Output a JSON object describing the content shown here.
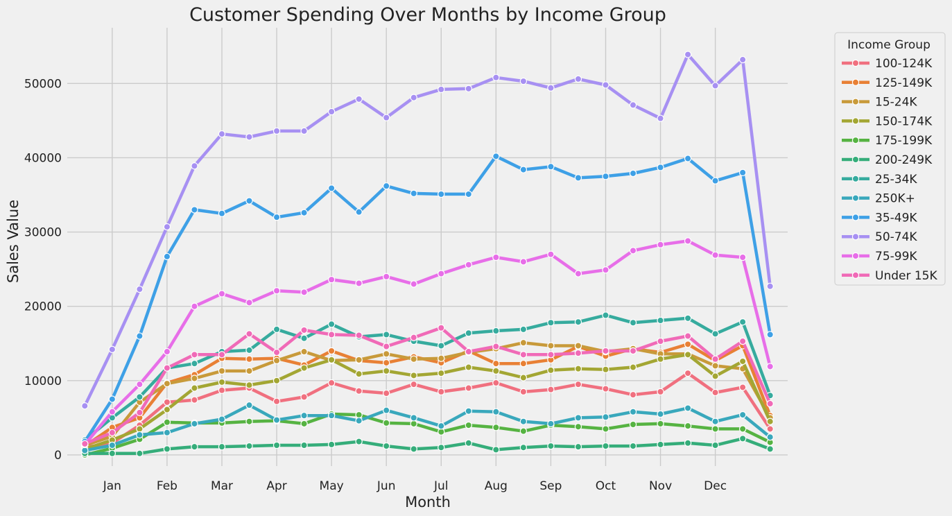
{
  "chart_data": {
    "type": "line",
    "title": "Customer Spending Over Months by Income Group",
    "xlabel": "Month",
    "ylabel": "Sales Value",
    "x_tick_labels": [
      "Jan",
      "Feb",
      "Mar",
      "Apr",
      "May",
      "Jun",
      "Jul",
      "Aug",
      "Sep",
      "Oct",
      "Nov",
      "Dec"
    ],
    "y_ticks": [
      0,
      10000,
      20000,
      30000,
      40000,
      50000
    ],
    "ylim": [
      -1500,
      57500
    ],
    "grid": true,
    "legend_title": "Income Group",
    "legend_placement": "outside-top-right",
    "series": [
      {
        "name": "100-124K",
        "color": "#f0707f",
        "values": [
          1000,
          1600,
          4000,
          7100,
          7400,
          8700,
          9000,
          7200,
          7800,
          9700,
          8600,
          8300,
          9500,
          8500,
          9000,
          9700,
          8500,
          8800,
          9500,
          8900,
          8100,
          8500,
          11000,
          8400,
          9100,
          3500
        ]
      },
      {
        "name": "125-149K",
        "color": "#e88035",
        "values": [
          1200,
          3700,
          5000,
          9700,
          10800,
          13000,
          12900,
          13000,
          12100,
          14000,
          12700,
          12400,
          13200,
          12400,
          14000,
          12300,
          12300,
          12800,
          14600,
          13300,
          14300,
          13800,
          14900,
          12700,
          14700,
          5300
        ]
      },
      {
        "name": "15-24K",
        "color": "#c89a3a",
        "values": [
          1300,
          2500,
          7100,
          9600,
          10300,
          11300,
          11300,
          12700,
          13900,
          12700,
          12800,
          13600,
          12900,
          13000,
          13800,
          14300,
          15100,
          14700,
          14700,
          13900,
          14300,
          13600,
          13600,
          12000,
          11600,
          5000
        ]
      },
      {
        "name": "150-174K",
        "color": "#a3a633",
        "values": [
          800,
          2000,
          3500,
          6100,
          9000,
          9800,
          9400,
          10000,
          11700,
          12800,
          10900,
          11300,
          10700,
          11000,
          11800,
          11300,
          10400,
          11400,
          11600,
          11500,
          11800,
          12900,
          13500,
          10600,
          12600,
          4500
        ]
      },
      {
        "name": "175-199K",
        "color": "#56b342",
        "values": [
          0,
          900,
          2100,
          4400,
          4300,
          4300,
          4500,
          4600,
          4200,
          5500,
          5400,
          4300,
          4200,
          3100,
          4000,
          3700,
          3200,
          4000,
          3800,
          3500,
          4100,
          4200,
          3900,
          3500,
          3500,
          1700
        ]
      },
      {
        "name": "200-249K",
        "color": "#35ad7a",
        "values": [
          200,
          200,
          200,
          800,
          1100,
          1100,
          1200,
          1300,
          1300,
          1400,
          1800,
          1200,
          800,
          1000,
          1600,
          700,
          1000,
          1200,
          1100,
          1200,
          1200,
          1400,
          1600,
          1300,
          2200,
          800
        ]
      },
      {
        "name": "25-34K",
        "color": "#36ab9e",
        "values": [
          2000,
          5000,
          7800,
          11700,
          12300,
          13900,
          14100,
          16900,
          15700,
          17600,
          15900,
          16200,
          15300,
          14700,
          16400,
          16700,
          16900,
          17800,
          17900,
          18800,
          17800,
          18100,
          18400,
          16300,
          17900,
          8000
        ]
      },
      {
        "name": "250K+",
        "color": "#39a8bc",
        "values": [
          600,
          1300,
          2700,
          3000,
          4200,
          4800,
          6700,
          4700,
          5300,
          5300,
          4600,
          6000,
          5000,
          3900,
          5900,
          5800,
          4500,
          4200,
          5000,
          5100,
          5800,
          5500,
          6300,
          4500,
          5400,
          2400
        ]
      },
      {
        "name": "35-49K",
        "color": "#3ea0e6",
        "values": [
          1800,
          7500,
          16000,
          26700,
          33000,
          32500,
          34200,
          32000,
          32600,
          35900,
          32700,
          36200,
          35200,
          35100,
          35100,
          40200,
          38400,
          38800,
          37300,
          37500,
          37900,
          38700,
          39900,
          36900,
          38000,
          16200
        ]
      },
      {
        "name": "50-74K",
        "color": "#a790f2",
        "values": [
          6600,
          14200,
          22300,
          30700,
          38900,
          43200,
          42800,
          43600,
          43600,
          46200,
          47900,
          45400,
          48100,
          49200,
          49300,
          50800,
          50300,
          49400,
          50600,
          49800,
          47100,
          45300,
          53900,
          49700,
          53200,
          22700
        ]
      },
      {
        "name": "75-99K",
        "color": "#e76ee8",
        "values": [
          1400,
          5800,
          9500,
          13900,
          20000,
          21700,
          20500,
          22100,
          21900,
          23600,
          23100,
          24000,
          23000,
          24400,
          25600,
          26600,
          26000,
          27000,
          24400,
          24900,
          27500,
          28300,
          28800,
          26900,
          26600,
          11900
        ]
      },
      {
        "name": "Under 15K",
        "color": "#f06ab7",
        "values": [
          1500,
          3000,
          5700,
          11700,
          13500,
          13500,
          16300,
          13800,
          16800,
          16200,
          16100,
          14600,
          15800,
          17100,
          13900,
          14600,
          13500,
          13500,
          13700,
          14000,
          14000,
          15300,
          16000,
          12900,
          15300,
          6900
        ]
      }
    ]
  }
}
